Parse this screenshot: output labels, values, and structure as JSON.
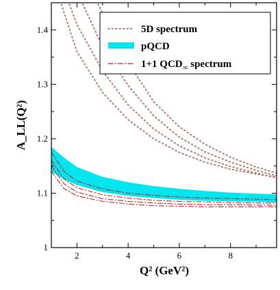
{
  "chart_data": {
    "type": "line",
    "xlabel": "Q² (GeV²)",
    "ylabel": "A_LL(Q²)",
    "xlim": [
      1,
      9.8
    ],
    "ylim": [
      1,
      1.45
    ],
    "xticks": [
      "2",
      "4",
      "6",
      "8"
    ],
    "yticks": [
      "1",
      "1.1",
      "1.2",
      "1.3",
      "1.4"
    ],
    "grid": false,
    "legend_position": "top-right",
    "legend": [
      {
        "label": "5D  spectrum",
        "style": "dotted",
        "color": "#b47a6e"
      },
      {
        "label": "pQCD",
        "style": "band",
        "color": "#00e5ee"
      },
      {
        "label": "1+1 QCD",
        "label_sub": "∞",
        "label_after": " spectrum",
        "style": "dash-dot",
        "color": "#cc2222"
      }
    ],
    "series": [
      {
        "group": "5D spectrum",
        "style": "dotted",
        "color": "#b47a6e",
        "points": [
          [
            1.3,
            1.46
          ],
          [
            2,
            1.36
          ],
          [
            3,
            1.285
          ],
          [
            4,
            1.235
          ],
          [
            5,
            1.2
          ],
          [
            6,
            1.175
          ],
          [
            7,
            1.157
          ],
          [
            8,
            1.144
          ],
          [
            9,
            1.135
          ],
          [
            9.8,
            1.13
          ]
        ]
      },
      {
        "group": "5D spectrum",
        "style": "dotted",
        "color": "#b47a6e",
        "points": [
          [
            1.6,
            1.46
          ],
          [
            2,
            1.41
          ],
          [
            3,
            1.325
          ],
          [
            4,
            1.262
          ],
          [
            5,
            1.218
          ],
          [
            6,
            1.187
          ],
          [
            7,
            1.165
          ],
          [
            8,
            1.149
          ],
          [
            9,
            1.137
          ],
          [
            9.8,
            1.128
          ]
        ]
      },
      {
        "group": "5D spectrum",
        "style": "dotted",
        "color": "#b47a6e",
        "points": [
          [
            2.1,
            1.46
          ],
          [
            3,
            1.37
          ],
          [
            4,
            1.298
          ],
          [
            5,
            1.242
          ],
          [
            6,
            1.203
          ],
          [
            7,
            1.176
          ],
          [
            8,
            1.157
          ],
          [
            9,
            1.142
          ],
          [
            9.8,
            1.132
          ]
        ]
      },
      {
        "group": "5D spectrum",
        "style": "dotted",
        "color": "#b47a6e",
        "points": [
          [
            2.7,
            1.46
          ],
          [
            3,
            1.43
          ],
          [
            4,
            1.34
          ],
          [
            5,
            1.268
          ],
          [
            6,
            1.222
          ],
          [
            7,
            1.19
          ],
          [
            8,
            1.166
          ],
          [
            9,
            1.148
          ],
          [
            9.8,
            1.137
          ]
        ]
      },
      {
        "group": "1+1 QCD spectrum",
        "style": "dash-dot",
        "color": "#cc2222",
        "points": [
          [
            1,
            1.14
          ],
          [
            1.5,
            1.108
          ],
          [
            2,
            1.095
          ],
          [
            3,
            1.085
          ],
          [
            4,
            1.08
          ],
          [
            5,
            1.077
          ],
          [
            6,
            1.076
          ],
          [
            7,
            1.075
          ],
          [
            8,
            1.075
          ],
          [
            9,
            1.075
          ],
          [
            9.8,
            1.075
          ]
        ]
      },
      {
        "group": "1+1 QCD spectrum",
        "style": "dash-dot",
        "color": "#cc2222",
        "points": [
          [
            1,
            1.15
          ],
          [
            1.5,
            1.117
          ],
          [
            2,
            1.102
          ],
          [
            3,
            1.09
          ],
          [
            4,
            1.085
          ],
          [
            5,
            1.082
          ],
          [
            6,
            1.08
          ],
          [
            7,
            1.079
          ],
          [
            8,
            1.079
          ],
          [
            9,
            1.078
          ],
          [
            9.8,
            1.078
          ]
        ]
      },
      {
        "group": "1+1 QCD spectrum",
        "style": "dash-dot",
        "color": "#cc2222",
        "points": [
          [
            1,
            1.16
          ],
          [
            1.5,
            1.126
          ],
          [
            2,
            1.11
          ],
          [
            3,
            1.097
          ],
          [
            4,
            1.091
          ],
          [
            5,
            1.087
          ],
          [
            6,
            1.085
          ],
          [
            7,
            1.084
          ],
          [
            8,
            1.083
          ],
          [
            9,
            1.082
          ],
          [
            9.8,
            1.082
          ]
        ]
      },
      {
        "group": "1+1 QCD spectrum",
        "style": "dash-dot",
        "color": "#cc2222",
        "points": [
          [
            1,
            1.175
          ],
          [
            1.5,
            1.14
          ],
          [
            2,
            1.122
          ],
          [
            3,
            1.108
          ],
          [
            4,
            1.1
          ],
          [
            5,
            1.096
          ],
          [
            6,
            1.093
          ],
          [
            7,
            1.091
          ],
          [
            8,
            1.09
          ],
          [
            9,
            1.089
          ],
          [
            9.8,
            1.088
          ]
        ]
      }
    ],
    "band": {
      "name": "pQCD",
      "color": "#00e5ee",
      "upper": [
        [
          1,
          1.185
        ],
        [
          1.5,
          1.165
        ],
        [
          2,
          1.148
        ],
        [
          3,
          1.13
        ],
        [
          4,
          1.12
        ],
        [
          5,
          1.113
        ],
        [
          6,
          1.108
        ],
        [
          7,
          1.104
        ],
        [
          8,
          1.101
        ],
        [
          9,
          1.099
        ],
        [
          9.8,
          1.098
        ]
      ],
      "lower": [
        [
          1,
          1.14
        ],
        [
          1.5,
          1.125
        ],
        [
          2,
          1.115
        ],
        [
          3,
          1.102
        ],
        [
          4,
          1.095
        ],
        [
          5,
          1.091
        ],
        [
          6,
          1.088
        ],
        [
          7,
          1.086
        ],
        [
          8,
          1.085
        ],
        [
          9,
          1.084
        ],
        [
          9.8,
          1.083
        ]
      ]
    }
  }
}
